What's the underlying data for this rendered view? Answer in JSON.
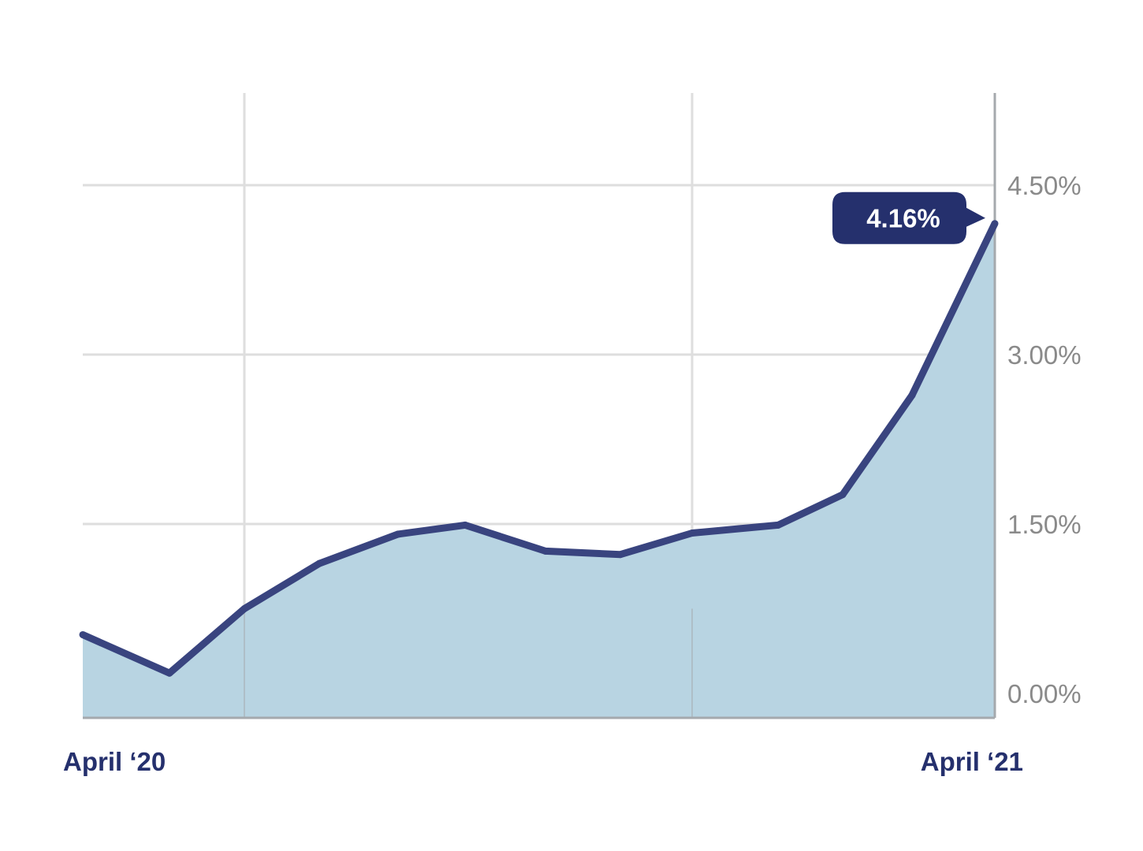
{
  "chart_data": {
    "type": "area",
    "x": [
      "Apr 2020",
      "May 2020",
      "Jun 2020",
      "Jul 2020",
      "Aug 2020",
      "Sep 2020",
      "Oct 2020",
      "Nov 2020",
      "Dec 2020",
      "Jan 2021",
      "Feb 2021",
      "Mar 2021",
      "Apr 2021"
    ],
    "values": [
      0.52,
      0.18,
      0.75,
      1.15,
      1.41,
      1.49,
      1.26,
      1.23,
      1.42,
      1.49,
      1.76,
      2.64,
      4.16
    ],
    "x_start_label": "April ‘20",
    "x_end_label": "April ‘21",
    "y_ticks": [
      {
        "value": 0.0,
        "label": "0.00%"
      },
      {
        "value": 1.5,
        "label": "1.50%"
      },
      {
        "value": 3.0,
        "label": "3.00%"
      },
      {
        "value": 4.5,
        "label": "4.50%"
      }
    ],
    "ylim": [
      -0.2,
      5.3
    ],
    "grid": true,
    "callout": {
      "label": "4.16%",
      "value": 4.16
    },
    "colors": {
      "line": "#39447f",
      "fill": "#b8d4e2",
      "grid": "#dedede",
      "axis": "#a5a9ad",
      "callout": "#25306d",
      "label": "#25306d",
      "tick": "#8a8a8a"
    }
  }
}
